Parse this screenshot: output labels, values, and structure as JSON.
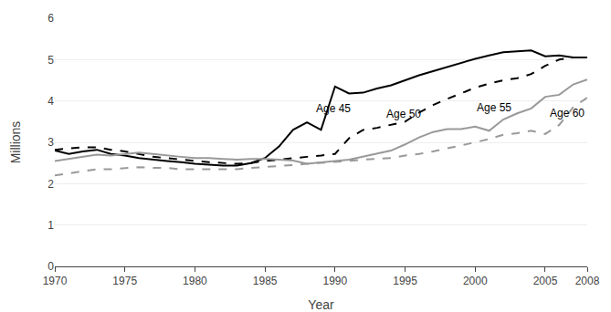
{
  "chart_data": {
    "type": "line",
    "x_title": "Year",
    "y_title": "Millions",
    "x": [
      1970,
      1971,
      1972,
      1973,
      1974,
      1975,
      1976,
      1977,
      1978,
      1979,
      1980,
      1981,
      1982,
      1983,
      1984,
      1985,
      1986,
      1987,
      1988,
      1989,
      1990,
      1991,
      1992,
      1993,
      1994,
      1995,
      1996,
      1997,
      1998,
      1999,
      2000,
      2001,
      2002,
      2003,
      2004,
      2005,
      2006,
      2007,
      2008
    ],
    "series": [
      {
        "color": "#000000",
        "line_style": "solid",
        "values": [
          2.8,
          2.72,
          2.78,
          2.82,
          2.72,
          2.68,
          2.62,
          2.58,
          2.55,
          2.52,
          2.48,
          2.46,
          2.44,
          2.44,
          2.5,
          2.62,
          2.9,
          3.3,
          3.48,
          3.3,
          4.35,
          4.18,
          4.2,
          4.3,
          4.38,
          4.5,
          4.62,
          4.72,
          4.82,
          4.92,
          5.02,
          5.1,
          5.18,
          5.2,
          5.22,
          5.08,
          5.1,
          5.05,
          5.05
        ]
      },
      {
        "color": "#000000",
        "line_style": "dashed",
        "values": [
          2.82,
          2.85,
          2.88,
          2.88,
          2.82,
          2.78,
          2.72,
          2.65,
          2.62,
          2.58,
          2.55,
          2.52,
          2.5,
          2.48,
          2.5,
          2.55,
          2.58,
          2.62,
          2.65,
          2.68,
          2.72,
          3.1,
          3.3,
          3.35,
          3.42,
          3.5,
          3.72,
          3.9,
          4.05,
          4.18,
          4.32,
          4.42,
          4.5,
          4.55,
          4.65,
          4.85,
          5.0,
          5.05,
          5.05
        ]
      },
      {
        "color": "#999999",
        "line_style": "solid",
        "values": [
          2.55,
          2.6,
          2.65,
          2.7,
          2.68,
          2.72,
          2.75,
          2.72,
          2.68,
          2.65,
          2.62,
          2.62,
          2.6,
          2.58,
          2.6,
          2.6,
          2.58,
          2.56,
          2.48,
          2.52,
          2.55,
          2.58,
          2.65,
          2.72,
          2.8,
          2.95,
          3.12,
          3.25,
          3.32,
          3.32,
          3.38,
          3.28,
          3.55,
          3.7,
          3.82,
          4.1,
          4.15,
          4.4,
          4.52
        ]
      },
      {
        "color": "#999999",
        "line_style": "dashed",
        "values": [
          2.2,
          2.25,
          2.3,
          2.35,
          2.35,
          2.38,
          2.4,
          2.38,
          2.38,
          2.35,
          2.35,
          2.35,
          2.35,
          2.35,
          2.38,
          2.4,
          2.42,
          2.45,
          2.48,
          2.5,
          2.52,
          2.55,
          2.58,
          2.6,
          2.62,
          2.68,
          2.72,
          2.78,
          2.85,
          2.92,
          3.0,
          3.08,
          3.18,
          3.22,
          3.28,
          3.2,
          3.42,
          3.85,
          4.08
        ]
      }
    ],
    "annotations": [
      {
        "text": "Age 45",
        "x": 1988.5,
        "y": 3.62
      },
      {
        "text": "Age 50",
        "x": 1993.5,
        "y": 3.48
      },
      {
        "text": "Age 55",
        "x": 2000.0,
        "y": 3.65
      },
      {
        "text": "Age 60",
        "x": 2005.2,
        "y": 3.5
      }
    ],
    "xlim": [
      1970,
      2008
    ],
    "xticks": [
      1970,
      1975,
      1980,
      1985,
      1990,
      1995,
      2000,
      2005,
      2008
    ],
    "ylim": [
      0,
      6
    ],
    "yticks": [
      0,
      1,
      2,
      3,
      4,
      5,
      6
    ],
    "grid": true
  }
}
